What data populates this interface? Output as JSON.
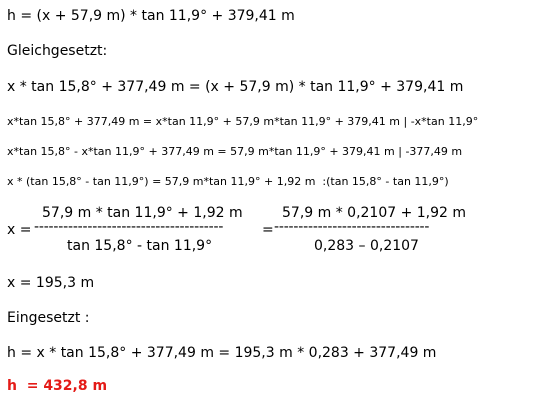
{
  "lines": {
    "line1": "h = (x + 57,9 m) * tan 11,9° + 379,41 m",
    "gleichgesetzt": "Gleichgesetzt:",
    "line2": "x * tan 15,8° + 377,49 m = (x + 57,9 m) * tan 11,9° + 379,41 m",
    "line3": "x*tan 15,8° + 377,49 m = x*tan 11,9° + 57,9 m*tan 11,9° + 379,41 m | -x*tan 11,9°",
    "line4": "x*tan 15,8° - x*tan 11,9° + 377,49 m = 57,9 m*tan 11,9° + 379,41 m | -377,49 m",
    "line5": "x * (tan 15,8° - tan 11,9°) = 57,9 m*tan 11,9° + 1,92 m  :(tan 15,8° - tan 11,9°)",
    "x_result": "x = 195,3 m",
    "eingesetzt": "Eingesetzt :",
    "line6": "h = x * tan 15,8° + 377,49 m = 195,3 m * 0,283 + 377,49 m",
    "final": "h  = 432,8 m"
  },
  "fraction": {
    "lhs": "x =",
    "num1": "57,9 m * tan 11,9° + 1,92 m",
    "den1": "tan 15,8° - tan 11,9°",
    "dashes1": "---------------------------------------",
    "equals": "=",
    "num2": "57,9 m * 0,2107 + 1,92 m",
    "den2": "0,283 – 0,2107",
    "dashes2": "--------------------------------"
  },
  "colors": {
    "text": "#000000",
    "result": "#e41b17"
  }
}
